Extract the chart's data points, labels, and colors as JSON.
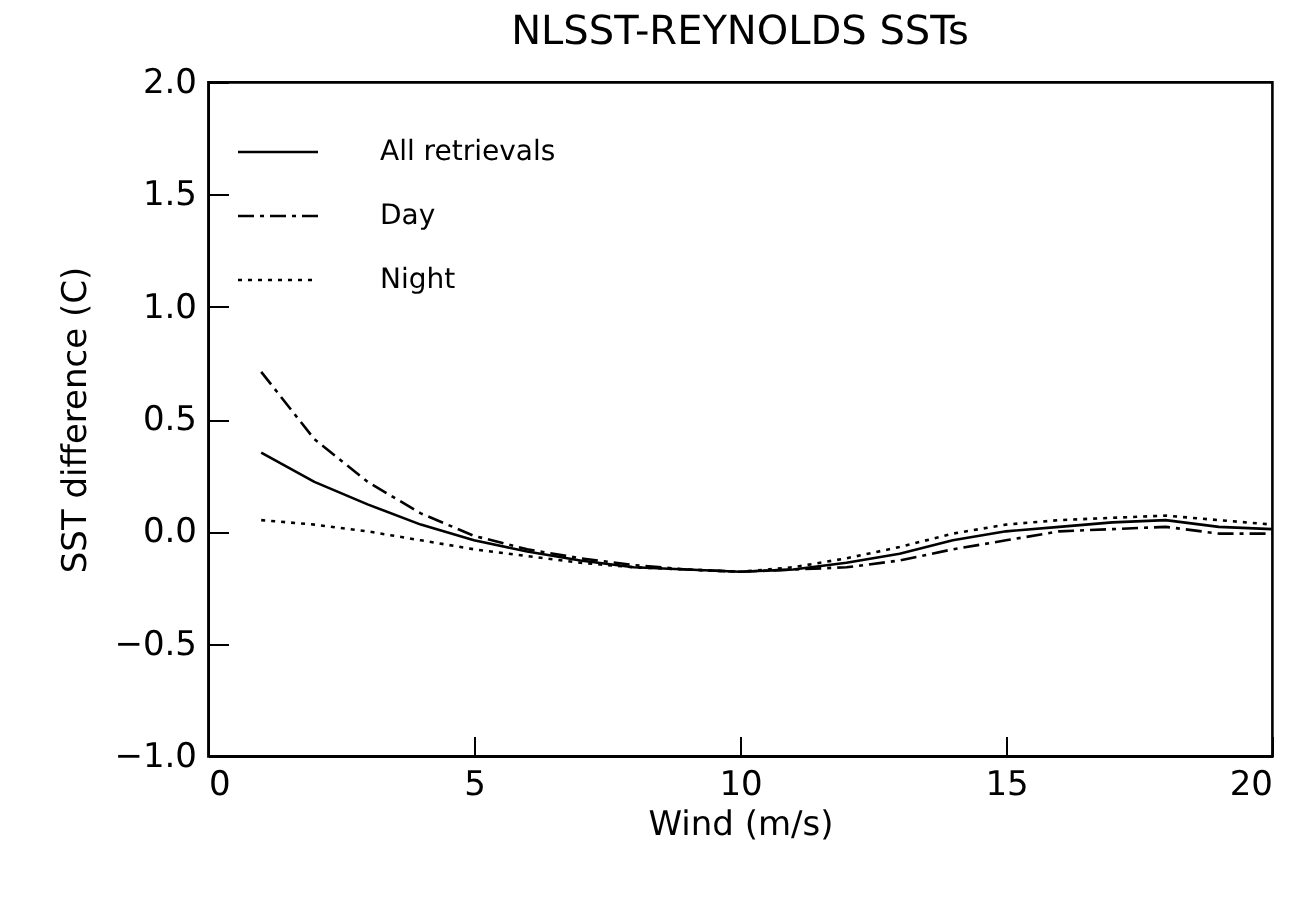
{
  "chart_data": {
    "type": "line",
    "title": "NLSST-REYNOLDS SSTs",
    "xlabel": "Wind (m/s)",
    "ylabel": "SST difference (C)",
    "x": [
      1,
      2,
      3,
      4,
      5,
      6,
      7,
      8,
      9,
      10,
      11,
      12,
      13,
      14,
      15,
      16,
      17,
      18,
      19,
      20
    ],
    "series": [
      {
        "name": "All retrievals",
        "color": "#000000",
        "line_style": "solid",
        "values": [
          0.35,
          0.22,
          0.12,
          0.03,
          -0.04,
          -0.09,
          -0.13,
          -0.16,
          -0.17,
          -0.18,
          -0.17,
          -0.14,
          -0.1,
          -0.04,
          0.0,
          0.02,
          0.04,
          0.05,
          0.02,
          0.01
        ]
      },
      {
        "name": "Day",
        "color": "#000000",
        "line_style": "dashed",
        "values": [
          0.71,
          0.41,
          0.22,
          0.08,
          -0.02,
          -0.08,
          -0.12,
          -0.15,
          -0.17,
          -0.18,
          -0.17,
          -0.16,
          -0.13,
          -0.08,
          -0.04,
          0.0,
          0.01,
          0.02,
          -0.01,
          -0.01
        ]
      },
      {
        "name": "Night",
        "color": "#000000",
        "line_style": "dotted",
        "values": [
          0.05,
          0.03,
          0.0,
          -0.04,
          -0.08,
          -0.11,
          -0.14,
          -0.16,
          -0.17,
          -0.18,
          -0.16,
          -0.12,
          -0.07,
          -0.01,
          0.03,
          0.05,
          0.06,
          0.07,
          0.05,
          0.03
        ]
      }
    ],
    "xlim": [
      0,
      20
    ],
    "xticks": [
      0,
      5,
      10,
      15,
      20
    ],
    "ylim": [
      -1.0,
      2.0
    ],
    "yticks": [
      {
        "value": -1.0,
        "label": "−1.0"
      },
      {
        "value": -0.5,
        "label": "−0.5"
      },
      {
        "value": 0,
        "label": "0.0"
      },
      {
        "value": 0.5,
        "label": "0.5"
      },
      {
        "value": 1.0,
        "label": "1.0"
      },
      {
        "value": 1.5,
        "label": "1.5"
      },
      {
        "value": 2.0,
        "label": "2.0"
      }
    ],
    "grid": false,
    "legend": "top left",
    "marker": "none"
  }
}
